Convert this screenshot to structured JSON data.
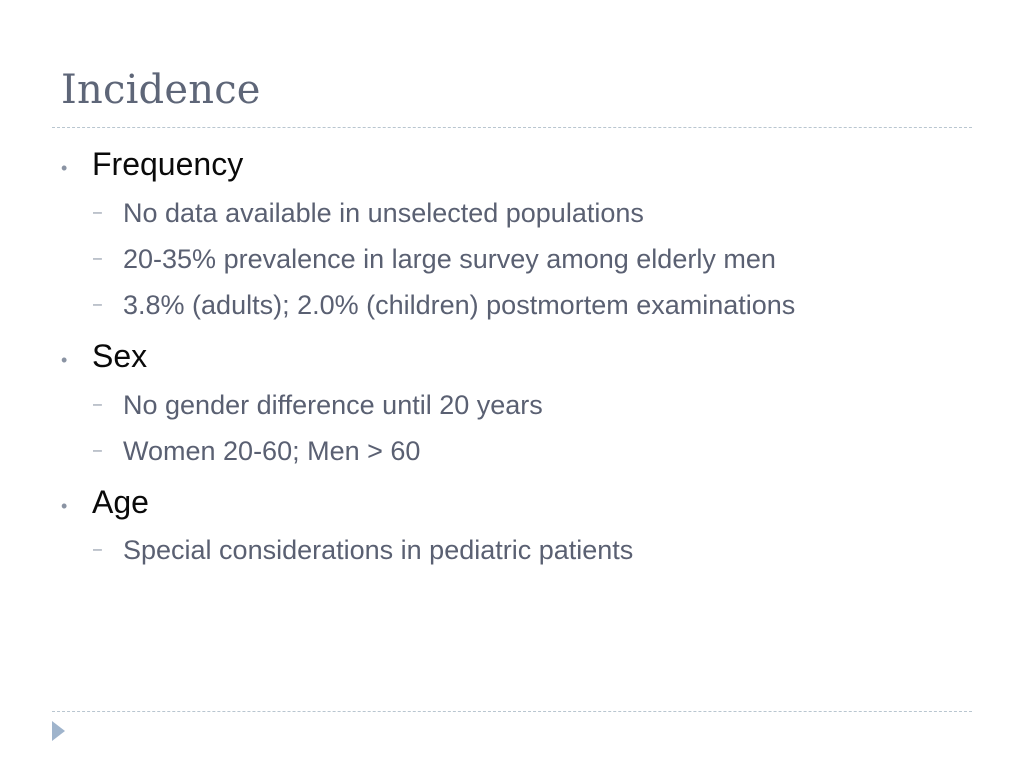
{
  "slide": {
    "title": "Incidence",
    "bullets": [
      {
        "label": "Frequency",
        "sub": [
          "No data available in unselected populations",
          "20-35% prevalence in large survey among elderly men",
          "3.8% (adults); 2.0% (children) postmortem examinations"
        ]
      },
      {
        "label": "Sex",
        "sub": [
          "No gender difference until 20 years",
          "Women 20-60; Men > 60"
        ]
      },
      {
        "label": "Age",
        "sub": [
          "Special considerations in pediatric patients"
        ]
      }
    ],
    "markers": {
      "level1": "•",
      "level2": "–"
    },
    "nav_icon": "triangle-right-icon",
    "colors": {
      "title": "#5e6678",
      "level1_text": "#0a0a0a",
      "level2_text": "#5a6072",
      "rule": "#b9c6d0",
      "nav_icon": "#9fb4cc"
    }
  }
}
